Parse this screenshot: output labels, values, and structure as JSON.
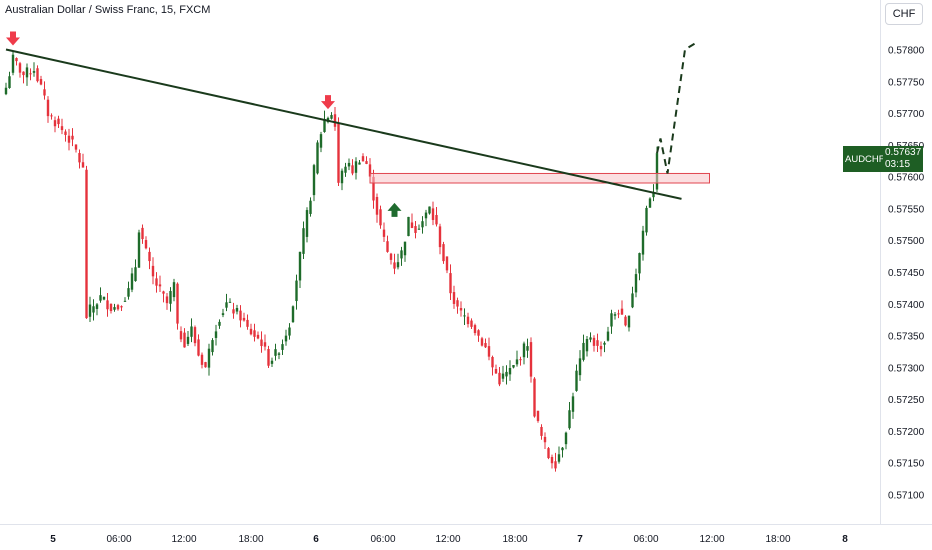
{
  "header": {
    "title": "Australian Dollar / Swiss Franc, 15, FXCM",
    "currency_button": "CHF"
  },
  "price_tag": {
    "symbol": "AUDCHF",
    "price": "0.57637",
    "countdown": "03:15"
  },
  "colors": {
    "up": "#1e6b2a",
    "down": "#e5323c",
    "trendline": "#1a3a1c",
    "zone_fill": "#f7c5c9",
    "zone_stroke": "#e0454f",
    "arrow_down": "#ef3b4a",
    "arrow_up": "#1f6b2f",
    "tag_bg": "#1e5e24"
  },
  "chart_data": {
    "type": "candlestick",
    "title": "Australian Dollar / Swiss Franc, 15, FXCM",
    "symbol": "AUDCHF",
    "timeframe": "15",
    "source": "FXCM",
    "last_price": 0.57637,
    "ylim": [
      0.5708,
      0.5783
    ],
    "y_ticks": [
      "0.57800",
      "0.57750",
      "0.57700",
      "0.57650",
      "0.57600",
      "0.57550",
      "0.57500",
      "0.57450",
      "0.57400",
      "0.57350",
      "0.57300",
      "0.57250",
      "0.57200",
      "0.57150",
      "0.57100"
    ],
    "x_ticks": [
      "5",
      "06:00",
      "12:00",
      "18:00",
      "6",
      "06:00",
      "12:00",
      "18:00",
      "7",
      "06:00",
      "12:00",
      "18:00",
      "8"
    ],
    "grid": false,
    "price_path": [
      [
        0,
        0.5774
      ],
      [
        2,
        0.57785
      ],
      [
        5,
        0.5776
      ],
      [
        8,
        0.5777
      ],
      [
        10,
        0.5774
      ],
      [
        12,
        0.577
      ],
      [
        15,
        0.5768
      ],
      [
        18,
        0.5766
      ],
      [
        20,
        0.5764
      ],
      [
        22,
        0.5761
      ],
      [
        23,
        0.5738
      ],
      [
        24,
        0.5739
      ],
      [
        27,
        0.5741
      ],
      [
        30,
        0.57395
      ],
      [
        32,
        0.57395
      ],
      [
        35,
        0.5742
      ],
      [
        37,
        0.5746
      ],
      [
        38,
        0.5752
      ],
      [
        40,
        0.5748
      ],
      [
        42,
        0.5744
      ],
      [
        44,
        0.5742
      ],
      [
        46,
        0.574
      ],
      [
        48,
        0.5743
      ],
      [
        49,
        0.5736
      ],
      [
        51,
        0.5734
      ],
      [
        53,
        0.5736
      ],
      [
        55,
        0.5732
      ],
      [
        57,
        0.573
      ],
      [
        59,
        0.5735
      ],
      [
        61,
        0.5738
      ],
      [
        63,
        0.574
      ],
      [
        65,
        0.5739
      ],
      [
        67,
        0.5738
      ],
      [
        69,
        0.5736
      ],
      [
        71,
        0.5735
      ],
      [
        73,
        0.5734
      ],
      [
        75,
        0.5731
      ],
      [
        77,
        0.5732
      ],
      [
        79,
        0.5734
      ],
      [
        81,
        0.5737
      ],
      [
        83,
        0.5744
      ],
      [
        85,
        0.5751
      ],
      [
        87,
        0.5757
      ],
      [
        89,
        0.5765
      ],
      [
        91,
        0.5769
      ],
      [
        93,
        0.577
      ],
      [
        94,
        0.5768
      ],
      [
        95,
        0.5759
      ],
      [
        97,
        0.5762
      ],
      [
        99,
        0.5761
      ],
      [
        101,
        0.5763
      ],
      [
        103,
        0.5762
      ],
      [
        105,
        0.5757
      ],
      [
        107,
        0.5752
      ],
      [
        109,
        0.5748
      ],
      [
        111,
        0.5746
      ],
      [
        113,
        0.5748
      ],
      [
        115,
        0.5753
      ],
      [
        117,
        0.5752
      ],
      [
        119,
        0.5753
      ],
      [
        121,
        0.5755
      ],
      [
        123,
        0.5752
      ],
      [
        125,
        0.5747
      ],
      [
        127,
        0.5742
      ],
      [
        129,
        0.5739
      ],
      [
        131,
        0.5738
      ],
      [
        133,
        0.5737
      ],
      [
        135,
        0.5735
      ],
      [
        137,
        0.5733
      ],
      [
        139,
        0.573
      ],
      [
        141,
        0.5728
      ],
      [
        143,
        0.5729
      ],
      [
        145,
        0.573
      ],
      [
        147,
        0.5732
      ],
      [
        149,
        0.5734
      ],
      [
        150,
        0.5728
      ],
      [
        151,
        0.5723
      ],
      [
        153,
        0.5719
      ],
      [
        155,
        0.5716
      ],
      [
        157,
        0.5715
      ],
      [
        159,
        0.5718
      ],
      [
        161,
        0.5723
      ],
      [
        163,
        0.5729
      ],
      [
        165,
        0.5733
      ],
      [
        167,
        0.5735
      ],
      [
        169,
        0.5733
      ],
      [
        171,
        0.5734
      ],
      [
        173,
        0.5738
      ],
      [
        175,
        0.5739
      ],
      [
        177,
        0.5736
      ],
      [
        179,
        0.5742
      ],
      [
        181,
        0.5748
      ],
      [
        183,
        0.5755
      ],
      [
        184,
        0.5757
      ],
      [
        185,
        0.5758
      ],
      [
        186,
        0.57637
      ]
    ],
    "annotations": {
      "trendline": [
        [
          0,
          0.578
        ],
        [
          193,
          0.57565
        ]
      ],
      "zone": {
        "x": [
          104,
          201
        ],
        "y": [
          0.5759,
          0.57605
        ]
      },
      "projection": [
        [
          186,
          0.57637
        ],
        [
          187,
          0.5766
        ],
        [
          189,
          0.57605
        ],
        [
          194,
          0.578
        ],
        [
          197,
          0.5781
        ]
      ],
      "arrows_down": [
        [
          2,
          0.578
        ],
        [
          92,
          0.577
        ]
      ],
      "arrows_up": [
        [
          111,
          0.57565
        ]
      ]
    }
  }
}
